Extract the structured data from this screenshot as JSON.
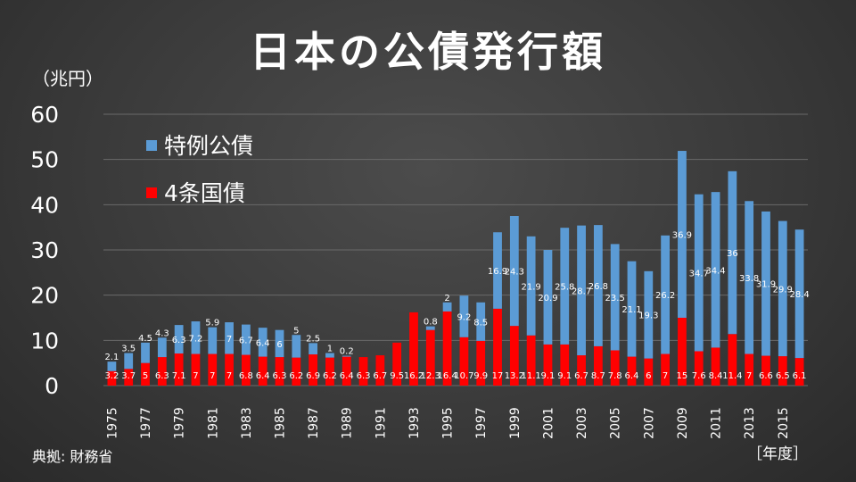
{
  "title": "日本の公債発行額",
  "unit_label": "（兆円）",
  "source": "典拠: 財務省",
  "x_unit": "［年度］",
  "chart_data": {
    "type": "bar",
    "stacked": true,
    "categories": [
      "1975",
      "1976",
      "1977",
      "1978",
      "1979",
      "1980",
      "1981",
      "1982",
      "1983",
      "1984",
      "1985",
      "1986",
      "1987",
      "1988",
      "1989",
      "1990",
      "1991",
      "1992",
      "1993",
      "1994",
      "1995",
      "1996",
      "1997",
      "1998",
      "1999",
      "2000",
      "2001",
      "2002",
      "2003",
      "2004",
      "2005",
      "2006",
      "2007",
      "2008",
      "2009",
      "2010",
      "2011",
      "2012",
      "2013",
      "2014",
      "2015",
      "2016"
    ],
    "x_tick_labels": [
      "1975",
      "1977",
      "1979",
      "1981",
      "1983",
      "1985",
      "1987",
      "1989",
      "1991",
      "1993",
      "1995",
      "1997",
      "1999",
      "2001",
      "2003",
      "2005",
      "2007",
      "2009",
      "2011",
      "2013",
      "2015"
    ],
    "ylim": [
      0,
      60
    ],
    "y_ticks": [
      0,
      10,
      20,
      30,
      40,
      50,
      60
    ],
    "grid": true,
    "legend_position": "top-left",
    "series": [
      {
        "name": "4条国債",
        "color": "#ff0000",
        "values": [
          3.2,
          3.7,
          5,
          6.3,
          7.1,
          7,
          7,
          7,
          6.8,
          6.4,
          6.3,
          6.2,
          6.9,
          6.2,
          6.4,
          6.3,
          6.7,
          9.5,
          16.2,
          12.3,
          16.4,
          10.7,
          9.9,
          17,
          13.2,
          11.1,
          9.1,
          9.1,
          6.7,
          8.7,
          7.8,
          6.4,
          6,
          7,
          15,
          7.6,
          8.4,
          11.4,
          7,
          6.6,
          6.5,
          6.1
        ],
        "labels": [
          "3.2",
          "3.7",
          "5",
          "6.3",
          "7.1",
          "7",
          "7",
          "7",
          "6.8",
          "6.4",
          "6.3",
          "6.2",
          "6.9",
          "6.2",
          "6.4",
          "6.3",
          "6.7",
          "9.5",
          "16.2",
          "12.3",
          "16.4",
          "10.7",
          "9.9",
          "17",
          "13.2",
          "11.1",
          "9.1",
          "9.1",
          "6.7",
          "8.7",
          "7.8",
          "6.4",
          "6",
          "7",
          "15",
          "7.6",
          "8.4",
          "11.4",
          "7",
          "6.6",
          "6.5",
          "6.1"
        ]
      },
      {
        "name": "特例公債",
        "color": "#5b9bd5",
        "values": [
          2.1,
          3.5,
          4.5,
          4.3,
          6.3,
          7.2,
          5.9,
          7,
          6.7,
          6.4,
          6,
          5,
          2.5,
          1,
          0.2,
          0,
          0,
          0,
          0,
          0.8,
          2,
          9.2,
          8.5,
          16.9,
          24.3,
          21.9,
          20.9,
          25.8,
          28.7,
          26.8,
          23.5,
          21.1,
          19.3,
          26.2,
          36.9,
          34.7,
          34.4,
          36,
          33.8,
          31.9,
          29.9,
          28.4
        ],
        "labels": [
          "2.1",
          "3.5",
          "4.5",
          "4.3",
          "6.3",
          "7.2",
          "5.9",
          "7",
          "6.7",
          "6.4",
          "6",
          "5",
          "2.5",
          "1",
          "0.2",
          "",
          "",
          "",
          "",
          "0.8",
          "2",
          "9.2",
          "8.5",
          "16.9",
          "24.3",
          "21.9",
          "20.9",
          "25.8",
          "28.7",
          "26.8",
          "23.5",
          "21.1",
          "19.3",
          "26.2",
          "36.9",
          "34.7",
          "34.4",
          "36",
          "33.8",
          "31.9",
          "29.9",
          "28.4"
        ]
      }
    ]
  }
}
